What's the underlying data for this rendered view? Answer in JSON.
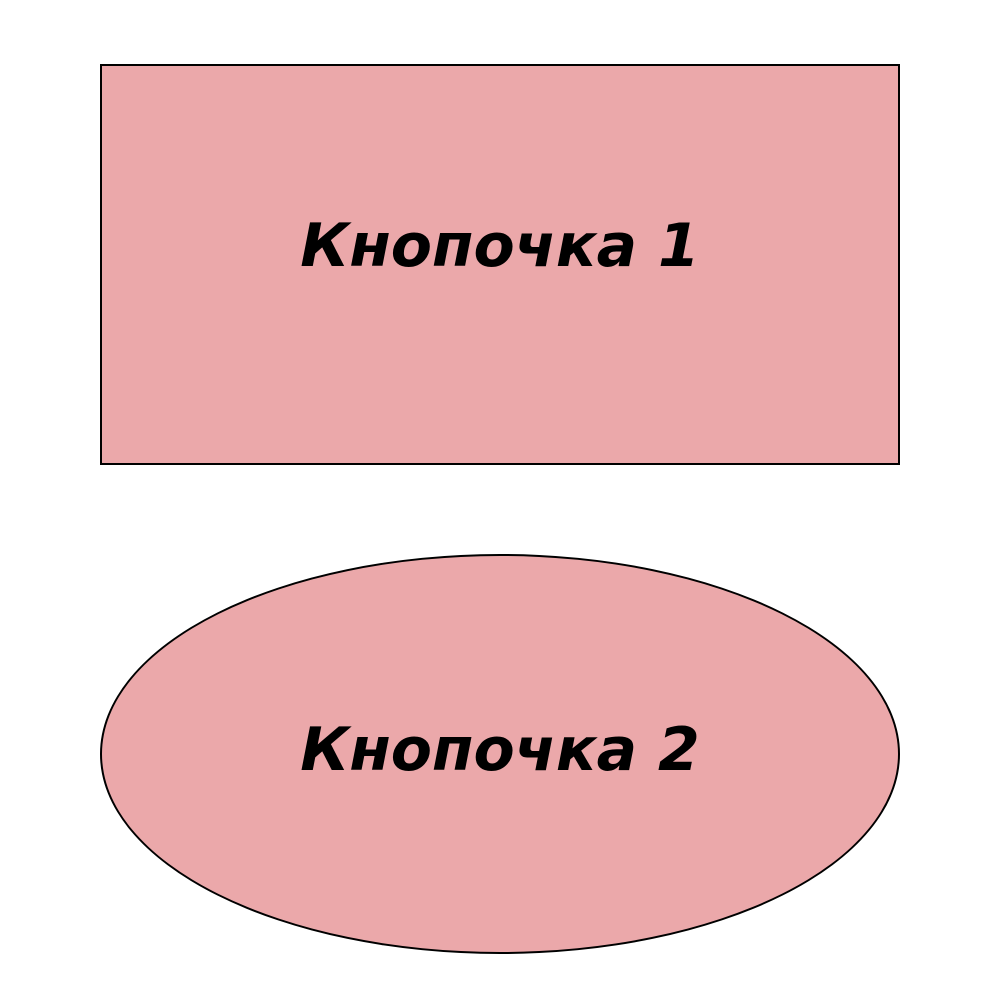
{
  "buttons": [
    {
      "label": "Кнопочка 1",
      "shape": "rectangle"
    },
    {
      "label": "Кнопочка 2",
      "shape": "ellipse"
    }
  ],
  "colors": {
    "background": "#ffffff",
    "button_fill": "#eba8aa",
    "border": "#000000",
    "text": "#000000"
  }
}
